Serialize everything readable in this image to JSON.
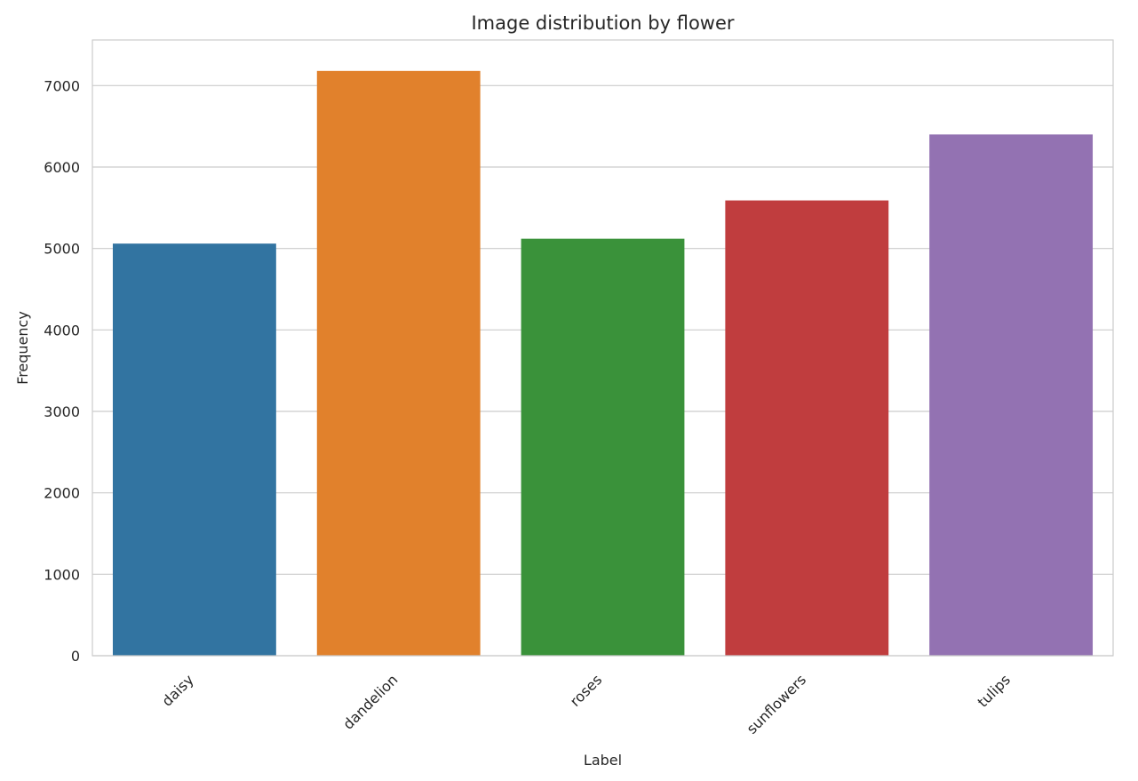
{
  "chart_data": {
    "type": "bar",
    "title": "Image distribution by flower",
    "xlabel": "Label",
    "ylabel": "Frequency",
    "categories": [
      "daisy",
      "dandelion",
      "roses",
      "sunflowers",
      "tulips"
    ],
    "values": [
      5060,
      7180,
      5120,
      5590,
      6400
    ],
    "colors": [
      "#3274a1",
      "#e1812c",
      "#3a923a",
      "#c03d3e",
      "#9372b2"
    ],
    "ylim": [
      0,
      7560
    ],
    "yticks": [
      0,
      1000,
      2000,
      3000,
      4000,
      5000,
      6000,
      7000
    ],
    "grid": "horizontal",
    "legend": "none"
  }
}
